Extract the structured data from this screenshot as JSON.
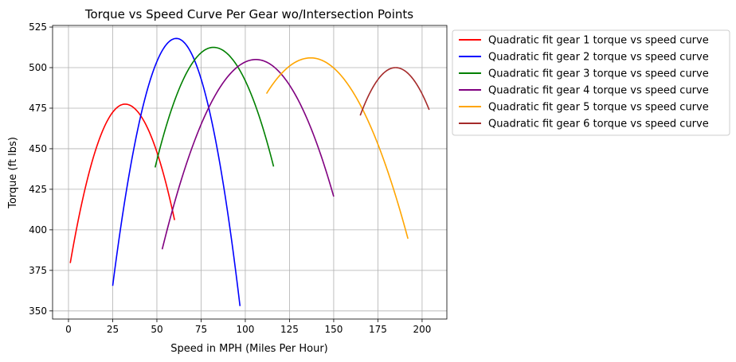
{
  "chart_data": {
    "type": "line",
    "title": "Torque vs Speed Curve Per Gear wo/Intersection Points",
    "xlabel": "Speed in MPH (Miles Per Hour)",
    "ylabel": "Torque (ft lbs)",
    "xlim": [
      -9,
      214
    ],
    "ylim": [
      345,
      526
    ],
    "xticks": [
      0,
      25,
      50,
      75,
      100,
      125,
      150,
      175,
      200
    ],
    "yticks": [
      350,
      375,
      400,
      425,
      450,
      475,
      500,
      525
    ],
    "grid": true,
    "legend_position": "outside right, top",
    "series": [
      {
        "name": "Quadratic fit gear 1 torque vs speed curve",
        "color": "#ff0000",
        "vertex": [
          32,
          477.5
        ],
        "x": [
          1,
          60
        ],
        "y_end": [
          379.5,
          406
        ]
      },
      {
        "name": "Quadratic fit gear 2 torque vs speed curve",
        "color": "#0000ff",
        "vertex": [
          61,
          518
        ],
        "x": [
          25,
          97
        ],
        "y_end": [
          365.5,
          353
        ]
      },
      {
        "name": "Quadratic fit gear 3 torque vs speed curve",
        "color": "#008000",
        "vertex": [
          82,
          512.5
        ],
        "x": [
          49,
          116
        ],
        "y_end": [
          438.5,
          439
        ]
      },
      {
        "name": "Quadratic fit gear 4 torque vs speed curve",
        "color": "#800080",
        "vertex": [
          106,
          505
        ],
        "x": [
          53,
          150
        ],
        "y_end": [
          388,
          420.5
        ]
      },
      {
        "name": "Quadratic fit gear 5 torque vs speed curve",
        "color": "#ffa500",
        "vertex": [
          137,
          506
        ],
        "x": [
          112,
          192
        ],
        "y_end": [
          484,
          394.5
        ]
      },
      {
        "name": "Quadratic fit gear 6 torque vs speed curve",
        "color": "#a52a2a",
        "vertex": [
          185,
          500
        ],
        "x": [
          165,
          204
        ],
        "y_end": [
          470.5,
          474
        ]
      }
    ]
  }
}
